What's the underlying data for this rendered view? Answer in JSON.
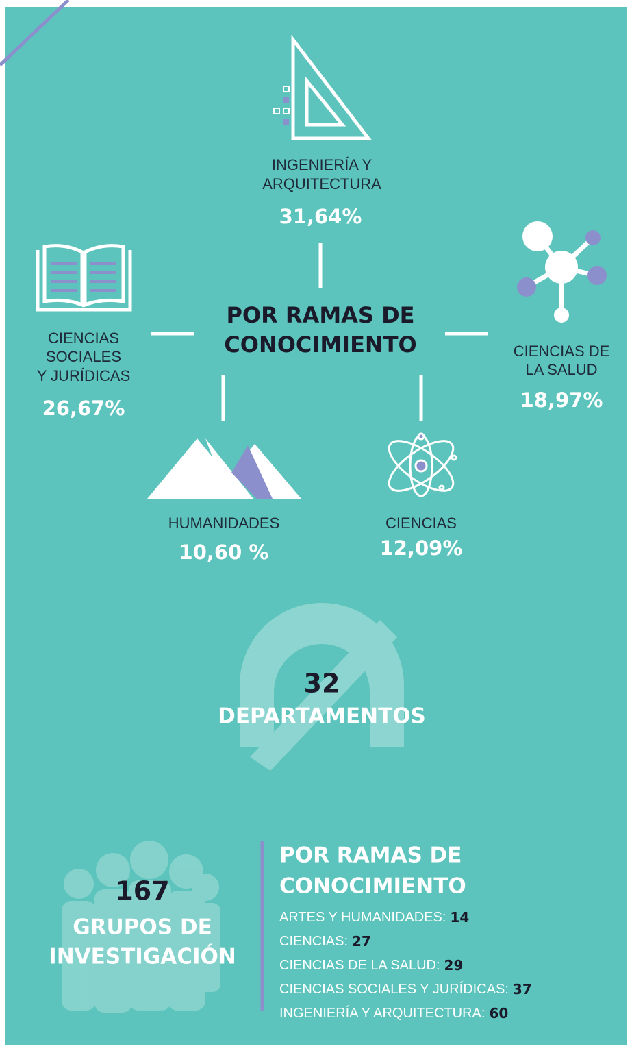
{
  "branches": {
    "title_lines": [
      "POR RAMAS DE",
      "CONOCIMIENTO"
    ],
    "items": [
      {
        "label_lines": [
          "INGENIERÍA Y",
          "ARQUITECTURA"
        ],
        "value": "31,64%"
      },
      {
        "label_lines": [
          "CIENCIAS",
          "SOCIALES",
          "Y JURÍDICAS"
        ],
        "value": "26,67%"
      },
      {
        "label_lines": [
          "CIENCIAS DE",
          "LA SALUD"
        ],
        "value": "18,97%"
      },
      {
        "label_lines": [
          "HUMANIDADES"
        ],
        "value": "10,60 %"
      },
      {
        "label_lines": [
          "CIENCIAS"
        ],
        "value": "12,09%"
      }
    ]
  },
  "departments": {
    "number": "32",
    "label": "DEPARTAMENTOS"
  },
  "groups": {
    "number": "167",
    "label_lines": [
      "GRUPOS DE",
      "INVESTIGACIÓN"
    ],
    "breakdown_title_lines": [
      "POR RAMAS DE",
      "CONOCIMIENTO"
    ],
    "rows": [
      {
        "label": "ARTES Y HUMANIDADES:",
        "value": 14
      },
      {
        "label": "CIENCIAS:",
        "value": 27
      },
      {
        "label": "CIENCIAS DE LA SALUD:",
        "value": 29
      },
      {
        "label": "CIENCIAS SOCIALES Y JURÍDICAS:",
        "value": 37
      },
      {
        "label": "INGENIERÍA Y ARQUITECTURA:",
        "value": 60
      }
    ]
  }
}
